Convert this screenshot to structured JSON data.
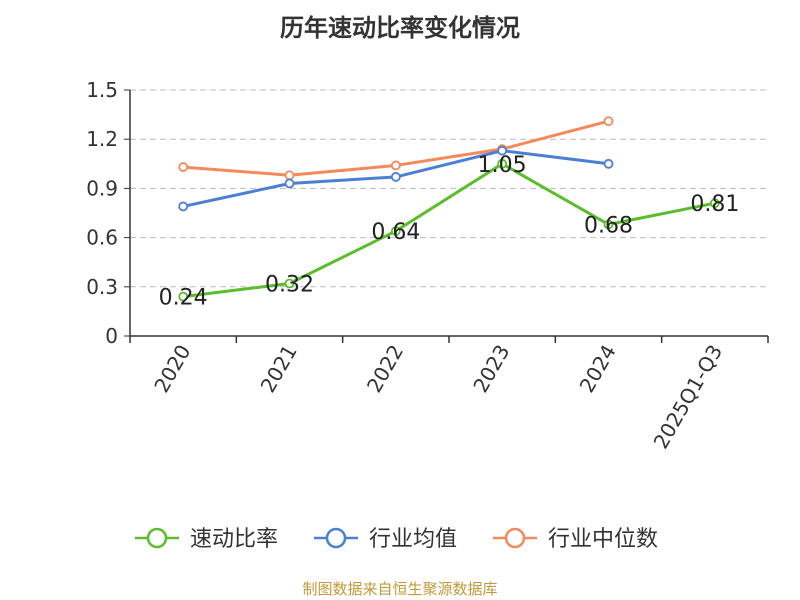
{
  "title": "历年速动比率变化情况",
  "source": "制图数据来自恒生聚源数据库",
  "colors": {
    "axis": "#333333",
    "grid": "#bbbbbb",
    "series": [
      "#5bbd2b",
      "#4a7fd4",
      "#f5895b"
    ]
  },
  "chart_data": {
    "type": "line",
    "title": "历年速动比率变化情况",
    "categories": [
      "2020",
      "2021",
      "2022",
      "2023",
      "2024",
      "2025Q1-Q3"
    ],
    "ylim": [
      0,
      1.5
    ],
    "yticks": [
      "0",
      "0.3",
      "0.6",
      "0.9",
      "1.2",
      "1.5"
    ],
    "grid": true,
    "legend": "bottom",
    "series": [
      {
        "name": "速动比率",
        "values": [
          0.24,
          0.32,
          0.64,
          1.05,
          0.68,
          0.81
        ],
        "labels": [
          "0.24",
          "0.32",
          "0.64",
          "1.05",
          "0.68",
          "0.81"
        ]
      },
      {
        "name": "行业均值",
        "values": [
          0.79,
          0.93,
          0.97,
          1.13,
          1.05,
          null
        ]
      },
      {
        "name": "行业中位数",
        "values": [
          1.03,
          0.98,
          1.04,
          1.14,
          1.31,
          null
        ]
      }
    ]
  }
}
